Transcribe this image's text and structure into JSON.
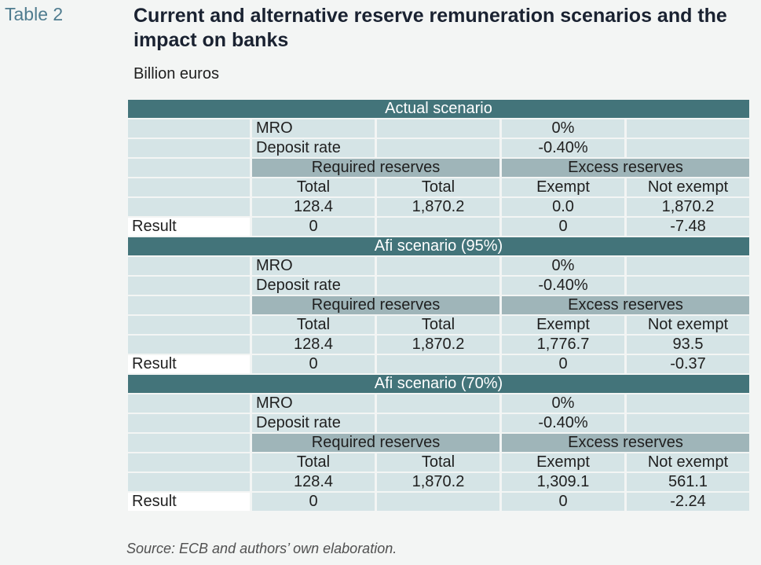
{
  "table_label": "Table 2",
  "title": "Current and alternative reserve remuneration scenarios and the impact on banks",
  "units": "Billion euros",
  "source": "Source: ECB and authors’ own elaboration.",
  "labels": {
    "mro": "MRO",
    "deposit_rate": "Deposit rate",
    "required_reserves": "Required reserves",
    "excess_reserves": "Excess reserves",
    "total": "Total",
    "exempt": "Exempt",
    "not_exempt": "Not exempt",
    "result": "Result"
  },
  "scenarios": [
    {
      "name": "Actual scenario",
      "mro": "0%",
      "deposit_rate": "-0.40%",
      "values": [
        "128.4",
        "1,870.2",
        "0.0",
        "1,870.2"
      ],
      "result": [
        "0",
        "0",
        "-7.48"
      ]
    },
    {
      "name": "Afi scenario (95%)",
      "mro": "0%",
      "deposit_rate": "-0.40%",
      "values": [
        "128.4",
        "1,870.2",
        "1,776.7",
        "93.5"
      ],
      "result": [
        "0",
        "0",
        "-0.37"
      ]
    },
    {
      "name": "Afi scenario (70%)",
      "mro": "0%",
      "deposit_rate": "-0.40%",
      "values": [
        "128.4",
        "1,870.2",
        "1,309.1",
        "561.1"
      ],
      "result": [
        "0",
        "0",
        "-2.24"
      ]
    }
  ]
}
